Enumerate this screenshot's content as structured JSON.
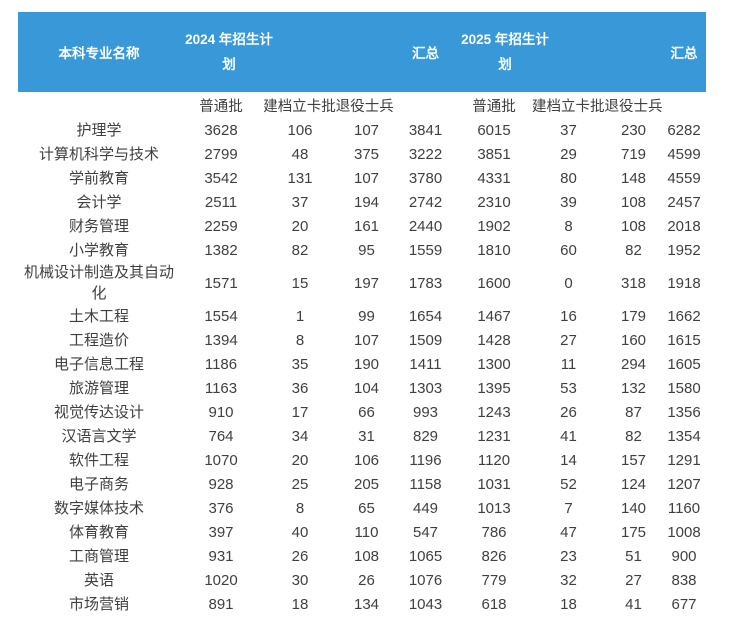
{
  "chart_data": {
    "type": "table",
    "header": {
      "major_col": "本科专业名称",
      "groups": [
        {
          "label": "2024 年招生计划",
          "sub_columns": [
            "普通批",
            "建档立卡批退役士兵"
          ],
          "summary_label": "汇总"
        },
        {
          "label": "2025 年招生计划",
          "sub_columns": [
            "普通批",
            "建档立卡批退役士兵"
          ],
          "summary_label": "汇总"
        }
      ],
      "value_columns_per_group": [
        "普通批",
        "建档立卡批",
        "退役士兵",
        "汇总"
      ]
    },
    "rows": [
      {
        "name": "护理学",
        "values": [
          3628,
          106,
          107,
          3841,
          6015,
          37,
          230,
          6282
        ]
      },
      {
        "name": "计算机科学与技术",
        "values": [
          2799,
          48,
          375,
          3222,
          3851,
          29,
          719,
          4599
        ]
      },
      {
        "name": "学前教育",
        "values": [
          3542,
          131,
          107,
          3780,
          4331,
          80,
          148,
          4559
        ]
      },
      {
        "name": "会计学",
        "values": [
          2511,
          37,
          194,
          2742,
          2310,
          39,
          108,
          2457
        ]
      },
      {
        "name": "财务管理",
        "values": [
          2259,
          20,
          161,
          2440,
          1902,
          8,
          108,
          2018
        ]
      },
      {
        "name": "小学教育",
        "values": [
          1382,
          82,
          95,
          1559,
          1810,
          60,
          82,
          1952
        ]
      },
      {
        "name": "机械设计制造及其自动化",
        "values": [
          1571,
          15,
          197,
          1783,
          1600,
          0,
          318,
          1918
        ]
      },
      {
        "name": "土木工程",
        "values": [
          1554,
          1,
          99,
          1654,
          1467,
          16,
          179,
          1662
        ]
      },
      {
        "name": "工程造价",
        "values": [
          1394,
          8,
          107,
          1509,
          1428,
          27,
          160,
          1615
        ]
      },
      {
        "name": "电子信息工程",
        "values": [
          1186,
          35,
          190,
          1411,
          1300,
          11,
          294,
          1605
        ]
      },
      {
        "name": "旅游管理",
        "values": [
          1163,
          36,
          104,
          1303,
          1395,
          53,
          132,
          1580
        ]
      },
      {
        "name": "视觉传达设计",
        "values": [
          910,
          17,
          66,
          993,
          1243,
          26,
          87,
          1356
        ]
      },
      {
        "name": "汉语言文学",
        "values": [
          764,
          34,
          31,
          829,
          1231,
          41,
          82,
          1354
        ]
      },
      {
        "name": "软件工程",
        "values": [
          1070,
          20,
          106,
          1196,
          1120,
          14,
          157,
          1291
        ]
      },
      {
        "name": "电子商务",
        "values": [
          928,
          25,
          205,
          1158,
          1031,
          52,
          124,
          1207
        ]
      },
      {
        "name": "数字媒体技术",
        "values": [
          376,
          8,
          65,
          449,
          1013,
          7,
          140,
          1160
        ]
      },
      {
        "name": "体育教育",
        "values": [
          397,
          40,
          110,
          547,
          786,
          47,
          175,
          1008
        ]
      },
      {
        "name": "工商管理",
        "values": [
          931,
          26,
          108,
          1065,
          826,
          23,
          51,
          900
        ]
      },
      {
        "name": "英语",
        "values": [
          1020,
          30,
          26,
          1076,
          779,
          32,
          27,
          838
        ]
      },
      {
        "name": "市场营销",
        "values": [
          891,
          18,
          134,
          1043,
          618,
          18,
          41,
          677
        ]
      }
    ]
  },
  "colors": {
    "header_bg": "#3898d8",
    "header_text": "#ffffff",
    "body_text": "#3f3f3f",
    "page_bg": "#ffffff"
  }
}
